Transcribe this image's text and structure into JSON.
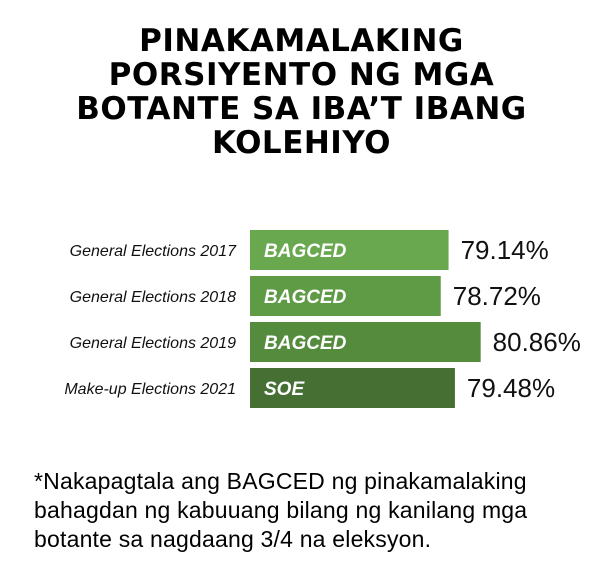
{
  "title": "PINAKAMALAKING\nPORSIYENTO NG MGA\nBOTANTE SA IBA’T IBANG\nKOLEHIYO",
  "chart_data": {
    "type": "bar",
    "orientation": "horizontal",
    "categories": [
      "General Elections 2017",
      "General Elections 2018",
      "General Elections 2019",
      "Make-up Elections 2021"
    ],
    "bar_labels": [
      "BAGCED",
      "BAGCED",
      "BAGCED",
      "SOE"
    ],
    "values": [
      79.14,
      78.72,
      80.86,
      79.48
    ],
    "value_labels": [
      "79.14%",
      "78.72%",
      "80.86%",
      "79.48%"
    ],
    "colors": [
      "#6aa84f",
      "#5f9a45",
      "#548b3c",
      "#466f33"
    ],
    "title": "",
    "xlabel": "",
    "ylabel": "",
    "grid": false,
    "legend": "none"
  },
  "footnote": "*Nakapagtala ang BAGCED ng pinakamalaking bahagdan ng kabuuang bilang ng kanilang mga botante sa nagdaang 3/4 na eleksyon."
}
